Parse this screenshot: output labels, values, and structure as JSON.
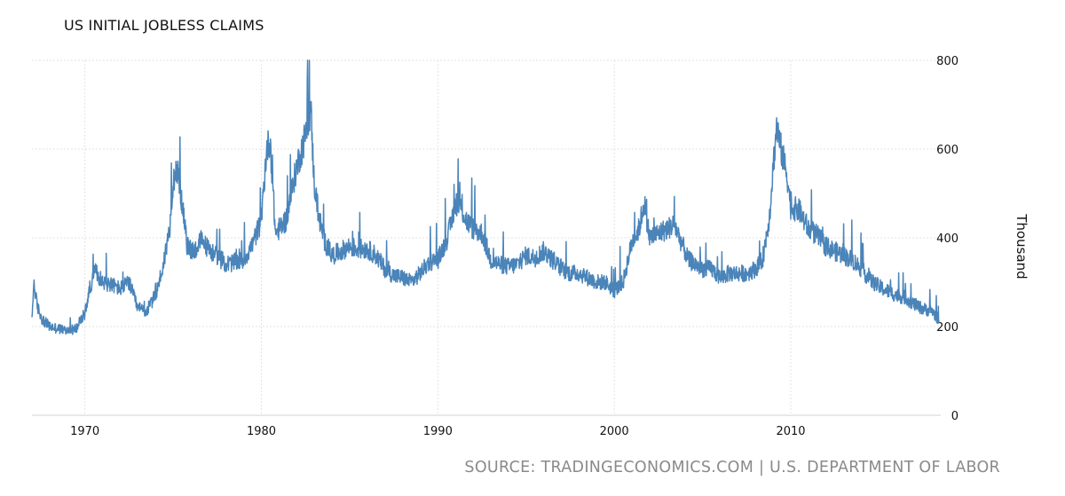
{
  "chart_data": {
    "type": "line",
    "title": "US INITIAL JOBLESS CLAIMS",
    "ylabel": "Thousand",
    "xlabel": "",
    "source": "SOURCE: TRADINGECONOMICS.COM | U.S. DEPARTMENT OF LABOR",
    "xlim": [
      1967.0,
      2018.5
    ],
    "ylim": [
      0,
      800
    ],
    "x_ticks": [
      "1970",
      "1980",
      "1990",
      "2000",
      "2010"
    ],
    "y_ticks": [
      "0",
      "200",
      "400",
      "600",
      "800"
    ],
    "grid": true,
    "line_color": "#4a84b9",
    "series": [
      {
        "x": [
          1967.0,
          1967.1,
          1967.3,
          1967.6,
          1968.0,
          1968.5,
          1969.0,
          1969.5,
          1970.0,
          1970.3,
          1970.6,
          1971.0,
          1971.5,
          1972.0,
          1972.5,
          1973.0,
          1973.5,
          1974.0,
          1974.4,
          1974.8,
          1975.0,
          1975.2,
          1975.5,
          1975.8,
          1976.2,
          1976.6,
          1977.0,
          1977.5,
          1978.0,
          1978.5,
          1979.0,
          1979.5,
          1980.0,
          1980.3,
          1980.5,
          1980.8,
          1981.0,
          1981.4,
          1981.8,
          1982.0,
          1982.3,
          1982.6,
          1982.8,
          1983.0,
          1983.3,
          1983.6,
          1984.0,
          1984.5,
          1985.0,
          1985.5,
          1986.0,
          1986.5,
          1987.0,
          1987.5,
          1988.0,
          1988.5,
          1989.0,
          1989.5,
          1990.0,
          1990.5,
          1990.8,
          1991.0,
          1991.3,
          1991.6,
          1992.0,
          1992.5,
          1993.0,
          1993.5,
          1994.0,
          1994.5,
          1995.0,
          1995.5,
          1996.0,
          1996.5,
          1997.0,
          1997.5,
          1998.0,
          1998.5,
          1999.0,
          1999.5,
          2000.0,
          2000.5,
          2001.0,
          2001.4,
          2001.7,
          2002.0,
          2002.5,
          2003.0,
          2003.4,
          2003.8,
          2004.2,
          2004.6,
          2005.0,
          2005.5,
          2006.0,
          2006.5,
          2007.0,
          2007.5,
          2008.0,
          2008.4,
          2008.8,
          2009.0,
          2009.2,
          2009.5,
          2009.8,
          2010.0,
          2010.5,
          2011.0,
          2011.5,
          2012.0,
          2012.5,
          2013.0,
          2013.5,
          2014.0,
          2014.5,
          2015.0,
          2015.5,
          2016.0,
          2016.5,
          2017.0,
          2017.5,
          2018.0,
          2018.4
        ],
        "y": [
          210,
          300,
          245,
          215,
          200,
          195,
          190,
          195,
          230,
          290,
          325,
          300,
          295,
          285,
          300,
          240,
          235,
          270,
          330,
          420,
          530,
          560,
          480,
          380,
          370,
          395,
          375,
          360,
          340,
          345,
          350,
          385,
          440,
          600,
          620,
          410,
          420,
          440,
          520,
          560,
          600,
          650,
          690,
          520,
          440,
          390,
          360,
          370,
          380,
          375,
          375,
          360,
          330,
          315,
          310,
          300,
          320,
          345,
          350,
          395,
          440,
          480,
          470,
          440,
          420,
          410,
          350,
          340,
          335,
          340,
          360,
          355,
          370,
          350,
          330,
          320,
          320,
          310,
          300,
          300,
          280,
          300,
          390,
          420,
          480,
          400,
          410,
          420,
          430,
          390,
          350,
          340,
          330,
          330,
          310,
          320,
          320,
          320,
          330,
          350,
          450,
          560,
          650,
          590,
          540,
          470,
          460,
          420,
          405,
          380,
          370,
          360,
          350,
          330,
          305,
          290,
          280,
          270,
          265,
          250,
          240,
          235,
          215
        ]
      }
    ]
  }
}
